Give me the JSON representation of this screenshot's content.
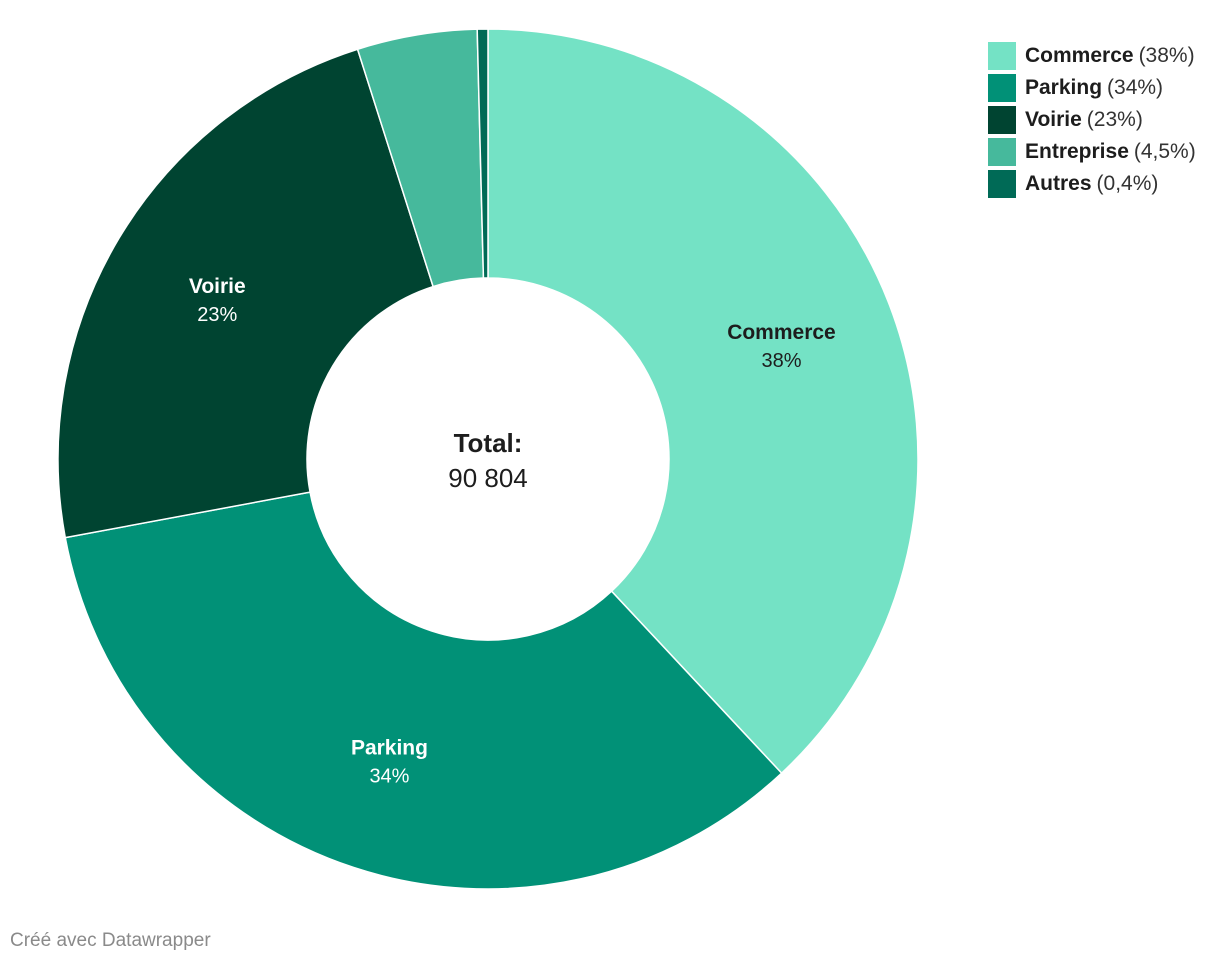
{
  "chart_data": {
    "type": "pie",
    "variant": "donut",
    "slices": [
      {
        "name": "Commerce",
        "value": 38,
        "display": "38%",
        "color": "#74e2c5",
        "label_color": "#1d1d1d",
        "show_label": true
      },
      {
        "name": "Parking",
        "value": 34,
        "display": "34%",
        "color": "#019177",
        "label_color": "#ffffff",
        "show_label": true
      },
      {
        "name": "Voirie",
        "value": 23,
        "display": "23%",
        "color": "#004431",
        "label_color": "#ffffff",
        "show_label": true
      },
      {
        "name": "Entreprise",
        "value": 4.5,
        "display": "4,5%",
        "color": "#46b99c",
        "label_color": "#1d1d1d",
        "show_label": false
      },
      {
        "name": "Autres",
        "value": 0.4,
        "display": "0,4%",
        "color": "#006a56",
        "label_color": "#ffffff",
        "show_label": false
      }
    ],
    "center": {
      "title": "Total:",
      "value": "90 804"
    },
    "legend_position": "top-right"
  },
  "footer": {
    "credit": "Créé avec Datawrapper"
  }
}
